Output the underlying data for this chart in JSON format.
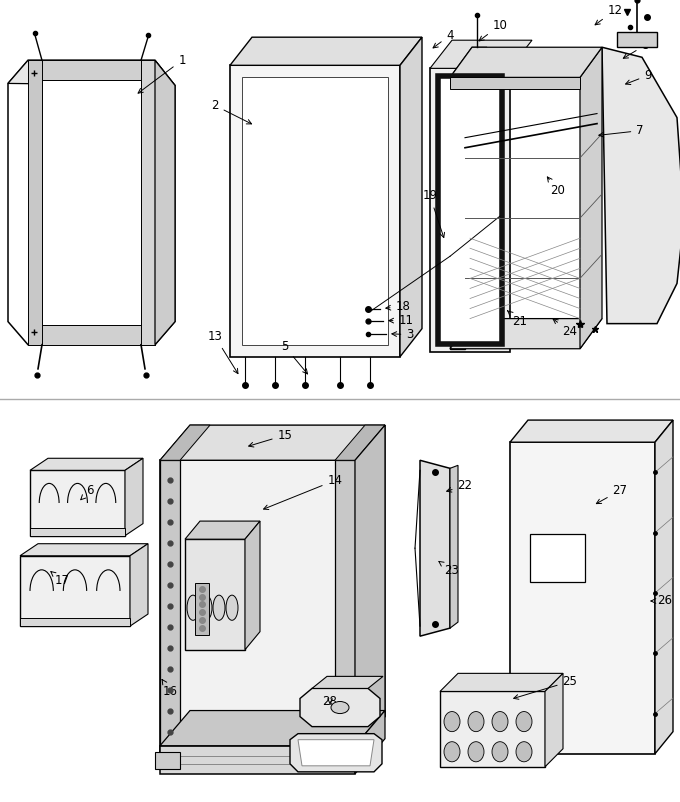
{
  "bg": "#ffffff",
  "lc": "#000000",
  "lw": 1.0,
  "fig_w": 6.8,
  "fig_h": 8.02,
  "dpi": 100
}
